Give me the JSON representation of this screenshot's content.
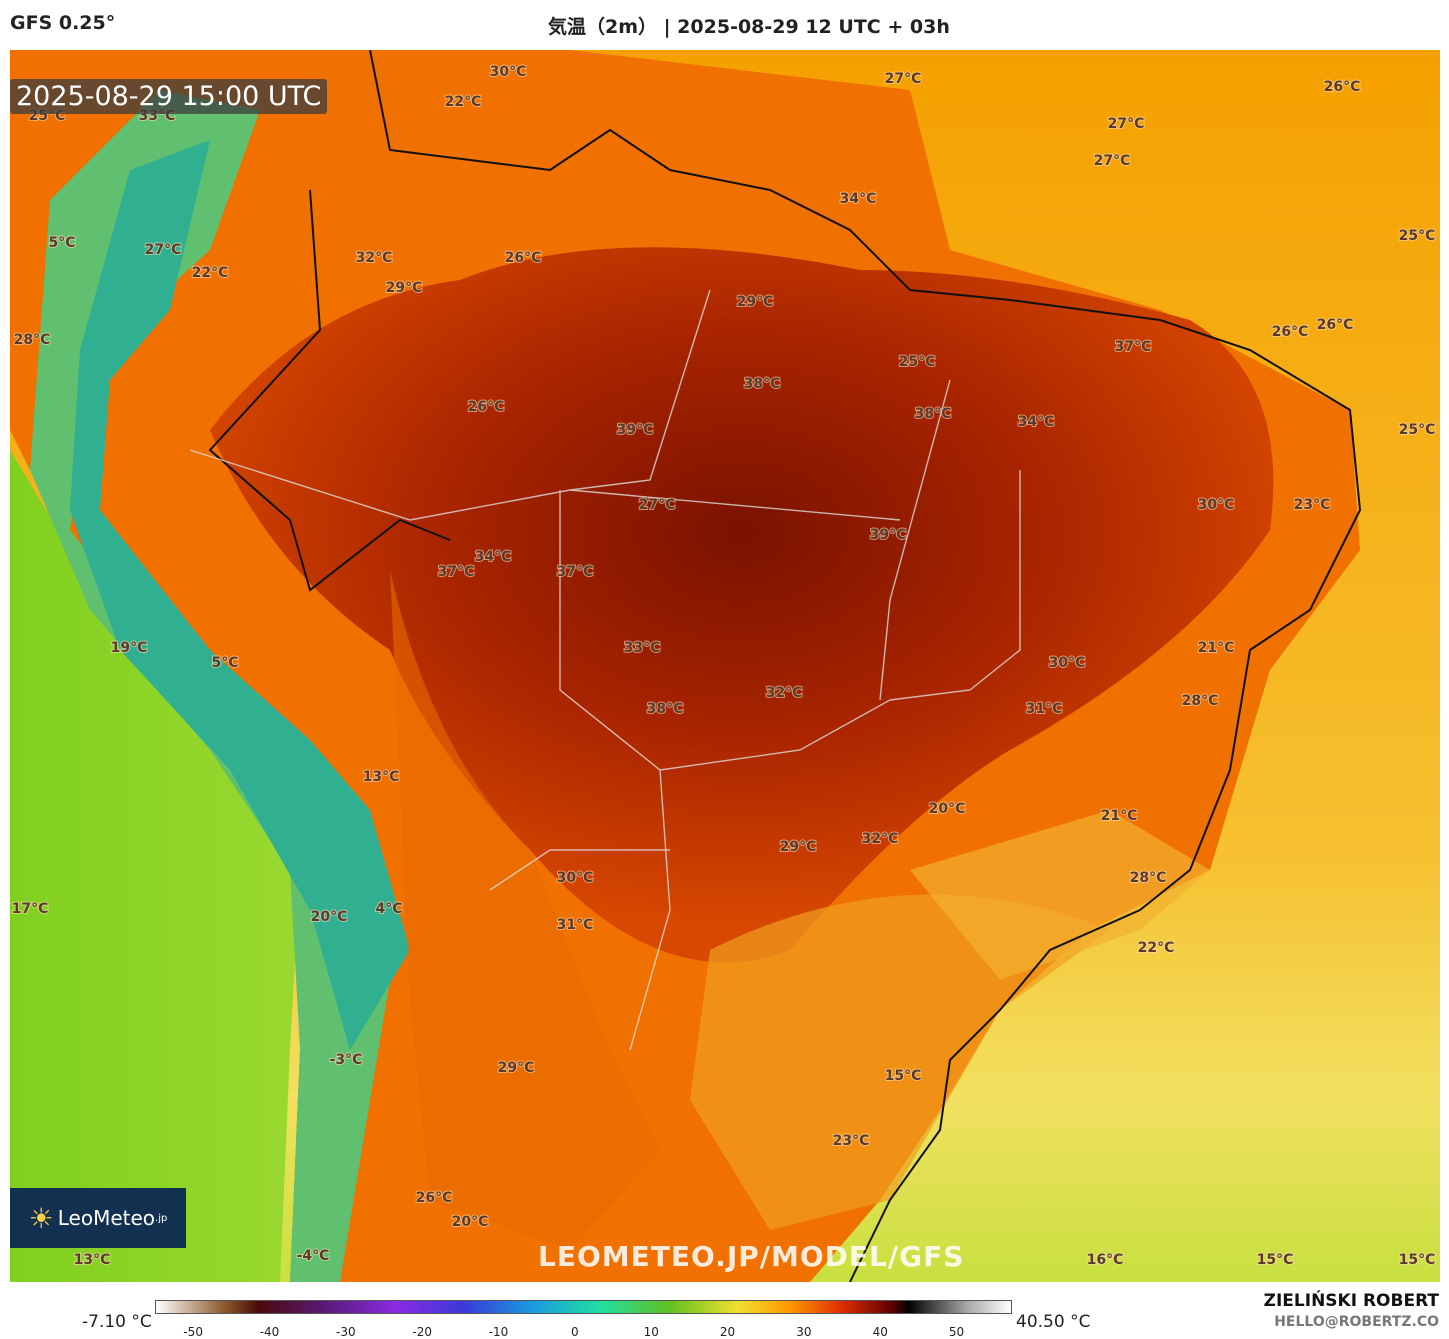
{
  "header": {
    "model": "GFS 0.25°",
    "title": "気温（2m） | 2025-08-29 12 UTC + 03h"
  },
  "timestamp": "2025-08-29 15:00 UTC",
  "watermark": "LEOMETEO.JP/MODEL/GFS",
  "logo": {
    "name": "LeoMeteo",
    "suffix": ".jp"
  },
  "labels": [
    "30°C",
    "22°C",
    "25°C",
    "33°C",
    "27°C",
    "26°C",
    "27°C",
    "27°C",
    "34°C",
    "25°C",
    "5°C",
    "27°C",
    "32°C",
    "26°C",
    "22°C",
    "29°C",
    "29°C",
    "26°C",
    "26°C",
    "28°C",
    "37°C",
    "25°C",
    "38°C",
    "26°C",
    "38°C",
    "34°C",
    "39°C",
    "25°C",
    "27°C",
    "30°C",
    "23°C",
    "39°C",
    "34°C",
    "37°C",
    "37°C",
    "33°C",
    "21°C",
    "19°C",
    "5°C",
    "30°C",
    "32°C",
    "28°C",
    "38°C",
    "31°C",
    "13°C",
    "20°C",
    "21°C",
    "32°C",
    "29°C",
    "30°C",
    "28°C",
    "17°C",
    "20°C",
    "4°C",
    "31°C",
    "22°C",
    "29°C",
    "-3°C",
    "15°C",
    "23°C",
    "26°C",
    "20°C",
    "13°C",
    "-4°C",
    "16°C",
    "15°C",
    "15°C"
  ],
  "colorbar": {
    "min_label": "-7.10 °C",
    "max_label": "40.50 °C",
    "ticks": [
      -50,
      -40,
      -30,
      -20,
      -10,
      0,
      10,
      20,
      30,
      40,
      50
    ]
  },
  "footer": {
    "author": "ZIELIŃSKI ROBERT",
    "email": "HELLO@ROBERTZ.CO"
  }
}
